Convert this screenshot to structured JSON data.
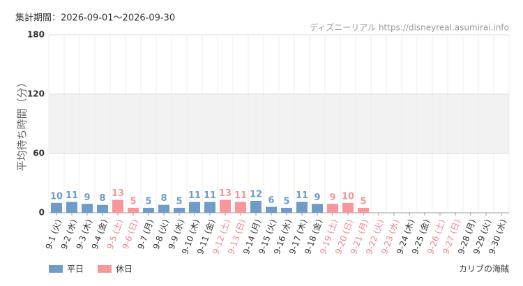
{
  "chart_data": {
    "type": "bar",
    "title": "集計期間：2026-09-01～2026-09-30",
    "subtitle": "ディズニーリアル https://disneyreal.asumirai.info",
    "y_label": "平均待ち時間（分）",
    "annotation": "カリブの海賊",
    "categories": [
      "9-1 (火)",
      "9-2 (水)",
      "9-3 (木)",
      "9-4 (金)",
      "9-5 (土)",
      "9-6 (日)",
      "9-7 (月)",
      "9-8 (火)",
      "9-9 (水)",
      "9-10 (木)",
      "9-11 (金)",
      "9-12 (土)",
      "9-13 (日)",
      "9-14 (月)",
      "9-15 (火)",
      "9-16 (水)",
      "9-17 (木)",
      "9-18 (金)",
      "9-19 (土)",
      "9-20 (日)",
      "9-21 (月)",
      "9-22 (火)",
      "9-23 (水)",
      "9-24 (木)",
      "9-25 (金)",
      "9-26 (土)",
      "9-27 (日)",
      "9-28 (月)",
      "9-29 (火)",
      "9-30 (水)"
    ],
    "category_colors": [
      "#333",
      "#333",
      "#333",
      "#333",
      "#f0858b",
      "#f0858b",
      "#333",
      "#333",
      "#333",
      "#333",
      "#333",
      "#f0858b",
      "#f0858b",
      "#333",
      "#333",
      "#333",
      "#333",
      "#333",
      "#f0858b",
      "#f0858b",
      "#f0858b",
      "#f0858b",
      "#f0858b",
      "#333",
      "#333",
      "#f0858b",
      "#f0858b",
      "#333",
      "#333",
      "#333"
    ],
    "series": [
      {
        "name": "平日",
        "color": "#6f9bc9",
        "values": [
          10,
          11,
          9,
          8,
          null,
          null,
          5,
          8,
          5,
          11,
          11,
          null,
          null,
          12,
          6,
          5,
          11,
          9,
          null,
          null,
          null,
          null,
          null,
          null,
          null,
          null,
          null,
          null,
          null,
          null
        ]
      },
      {
        "name": "休日",
        "color": "#f7969b",
        "values": [
          null,
          null,
          null,
          null,
          13,
          5,
          null,
          null,
          null,
          null,
          null,
          13,
          11,
          null,
          null,
          null,
          null,
          null,
          9,
          10,
          5,
          null,
          null,
          null,
          null,
          null,
          null,
          null,
          null,
          null
        ]
      }
    ],
    "ylim": [
      0,
      180
    ],
    "yticks": [
      0,
      60,
      120,
      180
    ],
    "grid": true
  }
}
